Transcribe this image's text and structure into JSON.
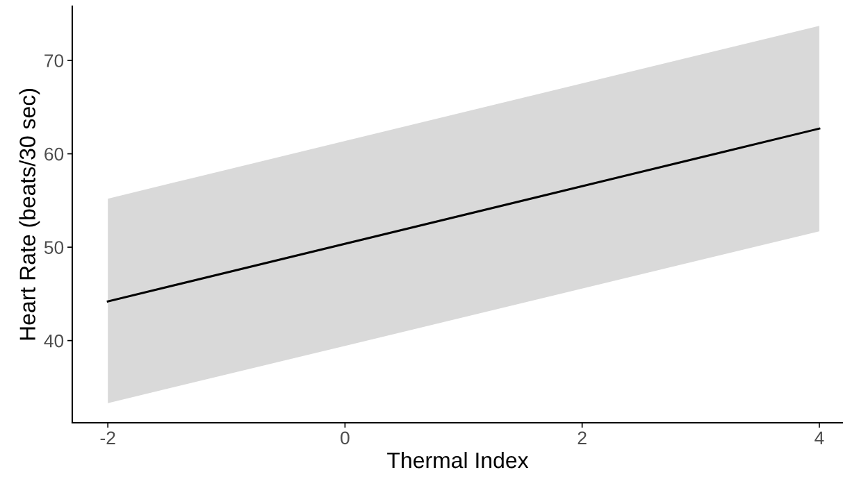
{
  "chart_data": {
    "type": "line",
    "xlabel": "Thermal Index",
    "ylabel": "Heart Rate (beats/30 sec)",
    "x": [
      -2,
      4
    ],
    "series": [
      {
        "color": "#000000",
        "values": [
          44.2,
          62.7
        ],
        "lower": [
          33.3,
          51.7
        ],
        "upper": [
          55.2,
          73.7
        ]
      }
    ],
    "xlim": [
      -2.3,
      4.2
    ],
    "ylim": [
      31.2,
      75.8
    ],
    "xticks": [
      -2,
      0,
      2,
      4
    ],
    "yticks": [
      40,
      50,
      60,
      70
    ],
    "grid": false,
    "legend": false
  }
}
